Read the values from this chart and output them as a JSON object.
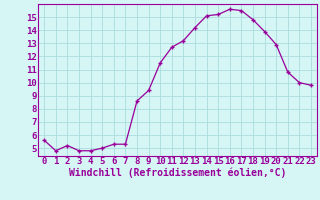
{
  "x": [
    0,
    1,
    2,
    3,
    4,
    5,
    6,
    7,
    8,
    9,
    10,
    11,
    12,
    13,
    14,
    15,
    16,
    17,
    18,
    19,
    20,
    21,
    22,
    23
  ],
  "y": [
    5.6,
    4.8,
    5.2,
    4.8,
    4.8,
    5.0,
    5.3,
    5.3,
    8.6,
    9.4,
    11.5,
    12.7,
    13.2,
    14.2,
    15.1,
    15.2,
    15.6,
    15.5,
    14.8,
    13.9,
    12.9,
    10.8,
    10.0,
    9.8
  ],
  "line_color": "#990099",
  "marker": "+",
  "bg_color": "#d6f5f5",
  "grid_color": "#aadddd",
  "xlabel": "Windchill (Refroidissement éolien,°C)",
  "tick_color": "#990099",
  "xlim": [
    -0.5,
    23.5
  ],
  "ylim": [
    4.4,
    16.0
  ],
  "yticks": [
    5,
    6,
    7,
    8,
    9,
    10,
    11,
    12,
    13,
    14,
    15
  ],
  "xticks": [
    0,
    1,
    2,
    3,
    4,
    5,
    6,
    7,
    8,
    9,
    10,
    11,
    12,
    13,
    14,
    15,
    16,
    17,
    18,
    19,
    20,
    21,
    22,
    23
  ],
  "font_size": 6.5,
  "xlabel_font_size": 7.0
}
